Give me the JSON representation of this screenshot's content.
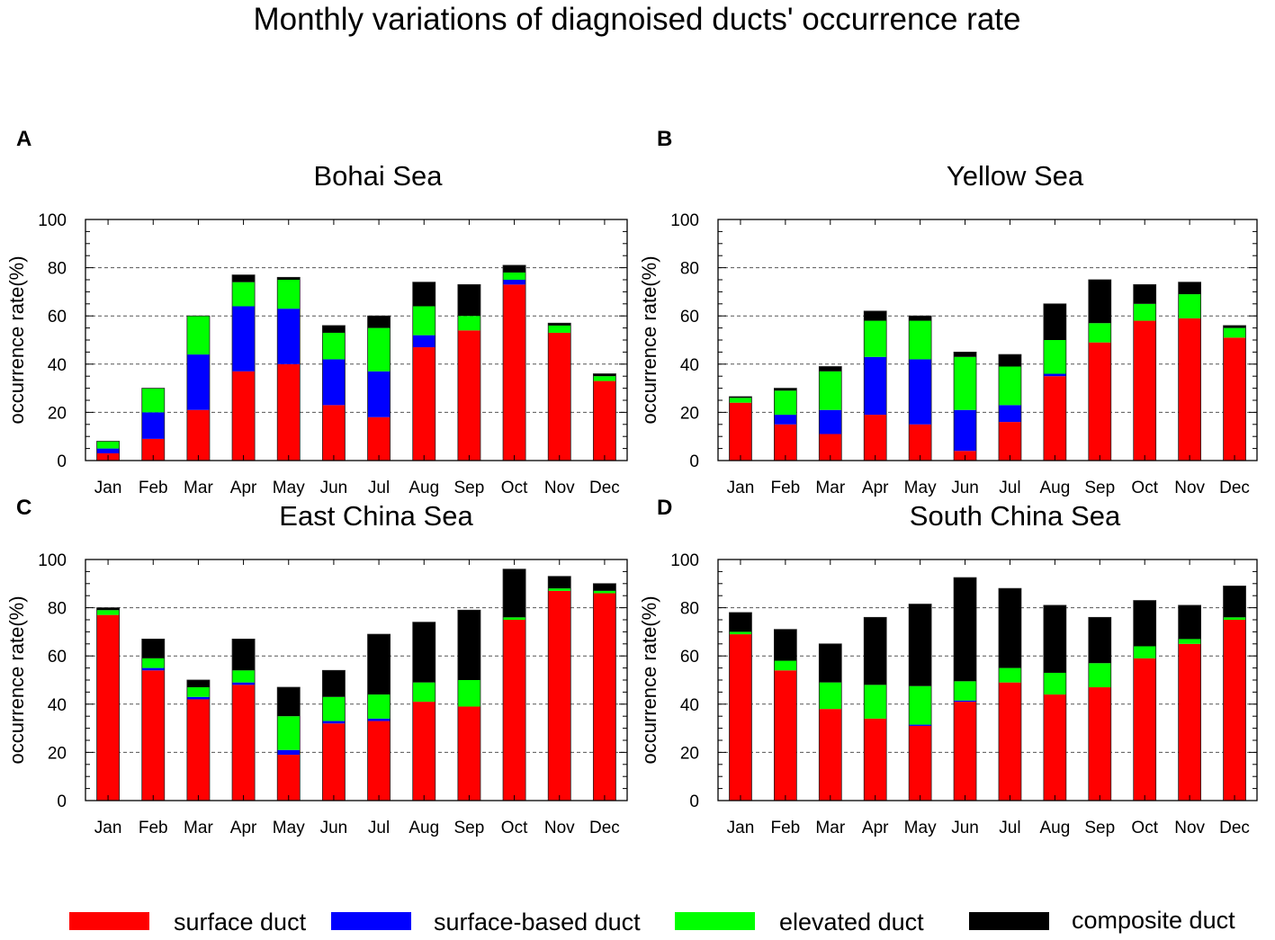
{
  "title": "Monthly variations of diagnoised ducts' occurrence rate",
  "colors": {
    "surface": "#ff0000",
    "surface_based": "#0000ff",
    "elevated": "#00ff00",
    "composite": "#000000"
  },
  "legend": [
    "surface duct",
    "surface-based duct",
    "elevated duct",
    "composite duct"
  ],
  "chart_data": [
    {
      "type": "bar",
      "stacked": true,
      "panel": "A",
      "title": "Bohai Sea",
      "xlabel": "",
      "ylabel": "occurrence rate(%)",
      "ylim": [
        0,
        100
      ],
      "yticks": [
        0,
        20,
        40,
        60,
        80,
        100
      ],
      "grid": "dashed at 20, 40, 60, 80",
      "categories": [
        "Jan",
        "Feb",
        "Mar",
        "Apr",
        "May",
        "Jun",
        "Jul",
        "Aug",
        "Sep",
        "Oct",
        "Nov",
        "Dec"
      ],
      "series": [
        {
          "name": "surface duct",
          "values": [
            3,
            9,
            21,
            37,
            40,
            23,
            18,
            47,
            54,
            73,
            53,
            33
          ]
        },
        {
          "name": "surface-based duct",
          "values": [
            2,
            11,
            23,
            27,
            23,
            19,
            19,
            5,
            0,
            2,
            0,
            0
          ]
        },
        {
          "name": "elevated duct",
          "values": [
            3,
            10,
            16,
            10,
            12,
            11,
            18,
            12,
            6,
            3,
            3,
            2
          ]
        },
        {
          "name": "composite duct",
          "values": [
            0,
            0,
            0,
            3,
            1,
            3,
            5,
            10,
            13,
            3,
            1,
            1
          ]
        }
      ]
    },
    {
      "type": "bar",
      "stacked": true,
      "panel": "B",
      "title": "Yellow Sea",
      "xlabel": "",
      "ylabel": "occurrence rate(%)",
      "ylim": [
        0,
        100
      ],
      "yticks": [
        0,
        20,
        40,
        60,
        80,
        100
      ],
      "grid": "dashed at 20, 40, 60, 80",
      "categories": [
        "Jan",
        "Feb",
        "Mar",
        "Apr",
        "May",
        "Jun",
        "Jul",
        "Aug",
        "Sep",
        "Oct",
        "Nov",
        "Dec"
      ],
      "series": [
        {
          "name": "surface duct",
          "values": [
            24,
            15,
            11,
            19,
            15,
            4,
            16,
            35,
            49,
            58,
            59,
            51
          ]
        },
        {
          "name": "surface-based duct",
          "values": [
            0,
            4,
            10,
            24,
            27,
            17,
            7,
            1,
            0,
            0,
            0,
            0
          ]
        },
        {
          "name": "elevated duct",
          "values": [
            2,
            10,
            16,
            15,
            16,
            22,
            16,
            14,
            8,
            7,
            10,
            4
          ]
        },
        {
          "name": "composite duct",
          "values": [
            0.5,
            1,
            2,
            4,
            2,
            2,
            5,
            15,
            18,
            8,
            5,
            1
          ]
        }
      ]
    },
    {
      "type": "bar",
      "stacked": true,
      "panel": "C",
      "title": "East China Sea",
      "xlabel": "",
      "ylabel": "occurrence rate(%)",
      "ylim": [
        0,
        100
      ],
      "yticks": [
        0,
        20,
        40,
        60,
        80,
        100
      ],
      "grid": "dashed at 20, 40, 60, 80",
      "categories": [
        "Jan",
        "Feb",
        "Mar",
        "Apr",
        "May",
        "Jun",
        "Jul",
        "Aug",
        "Sep",
        "Oct",
        "Nov",
        "Dec"
      ],
      "series": [
        {
          "name": "surface duct",
          "values": [
            77,
            54,
            42,
            48,
            19,
            32,
            33,
            41,
            39,
            75,
            87,
            86
          ]
        },
        {
          "name": "surface-based duct",
          "values": [
            0,
            1,
            1,
            1,
            2,
            1,
            1,
            0,
            0,
            0,
            0,
            0
          ]
        },
        {
          "name": "elevated duct",
          "values": [
            2,
            4,
            4,
            5,
            14,
            10,
            10,
            8,
            11,
            1,
            1,
            1
          ]
        },
        {
          "name": "composite duct",
          "values": [
            1,
            8,
            3,
            13,
            12,
            11,
            25,
            25,
            29,
            20,
            5,
            3
          ]
        }
      ]
    },
    {
      "type": "bar",
      "stacked": true,
      "panel": "D",
      "title": "South China Sea",
      "xlabel": "",
      "ylabel": "occurrence rate(%)",
      "ylim": [
        0,
        100
      ],
      "yticks": [
        0,
        20,
        40,
        60,
        80,
        100
      ],
      "grid": "dashed at 20, 40, 60, 80",
      "categories": [
        "Jan",
        "Feb",
        "Mar",
        "Apr",
        "May",
        "Jun",
        "Jul",
        "Aug",
        "Sep",
        "Oct",
        "Nov",
        "Dec"
      ],
      "series": [
        {
          "name": "surface duct",
          "values": [
            69,
            54,
            38,
            34,
            31,
            41,
            49,
            44,
            47,
            59,
            65,
            75
          ]
        },
        {
          "name": "surface-based duct",
          "values": [
            0,
            0,
            0,
            0,
            0.5,
            0.5,
            0,
            0,
            0,
            0,
            0,
            0
          ]
        },
        {
          "name": "elevated duct",
          "values": [
            1,
            4,
            11,
            14,
            16,
            8,
            6,
            9,
            10,
            5,
            2,
            1
          ]
        },
        {
          "name": "composite duct",
          "values": [
            8,
            13,
            16,
            28,
            34,
            43,
            33,
            28,
            19,
            19,
            14,
            13
          ]
        }
      ]
    }
  ]
}
